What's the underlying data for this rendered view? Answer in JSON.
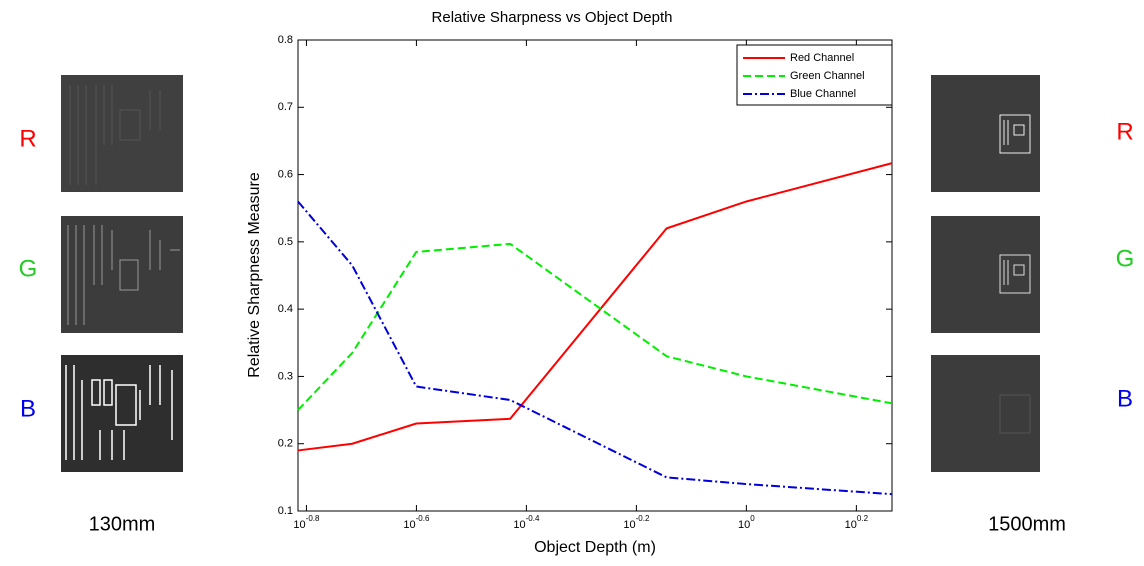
{
  "chart_data": {
    "type": "line",
    "title": "Relative Sharpness vs Object Depth",
    "x_label": "Object Depth (m)",
    "y_label": "Relative Sharpness Measure",
    "x_scale": "log",
    "legend": "upper right",
    "x": [
      0.153,
      0.192,
      0.251,
      0.372,
      0.716,
      1.0,
      1.84
    ],
    "series": [
      {
        "name": "Red Channel",
        "color": "#ff0000",
        "style": "solid",
        "values": [
          0.19,
          0.2,
          0.23,
          0.237,
          0.52,
          0.56,
          0.617
        ]
      },
      {
        "name": "Green Channel",
        "color": "#00ee00",
        "style": "dashed",
        "values": [
          0.25,
          0.335,
          0.485,
          0.497,
          0.33,
          0.3,
          0.26
        ]
      },
      {
        "name": "Blue Channel",
        "color": "#0000dd",
        "style": "dashdot",
        "values": [
          0.56,
          0.465,
          0.285,
          0.265,
          0.15,
          0.14,
          0.125
        ]
      }
    ],
    "xlim": [
      0.153,
      1.84
    ],
    "xticks": [
      {
        "value": 0.1585,
        "label": "10",
        "exponent": "-0.8"
      },
      {
        "value": 0.2512,
        "label": "10",
        "exponent": "-0.6"
      },
      {
        "value": 0.3981,
        "label": "10",
        "exponent": "-0.4"
      },
      {
        "value": 0.631,
        "label": "10",
        "exponent": "-0.2"
      },
      {
        "value": 1,
        "label": "10",
        "exponent": "0"
      },
      {
        "value": 1.585,
        "label": "10",
        "exponent": "0.2"
      }
    ],
    "ylim": [
      0.1,
      0.8
    ],
    "yticks": [
      0.1,
      0.2,
      0.3,
      0.4,
      0.5,
      0.6,
      0.7,
      0.8
    ],
    "grid": false
  },
  "side_panels": {
    "left": {
      "labels": [
        "R",
        "G",
        "B"
      ],
      "caption": "130mm"
    },
    "right": {
      "labels": [
        "R",
        "G",
        "B"
      ],
      "caption": "1500mm"
    }
  }
}
